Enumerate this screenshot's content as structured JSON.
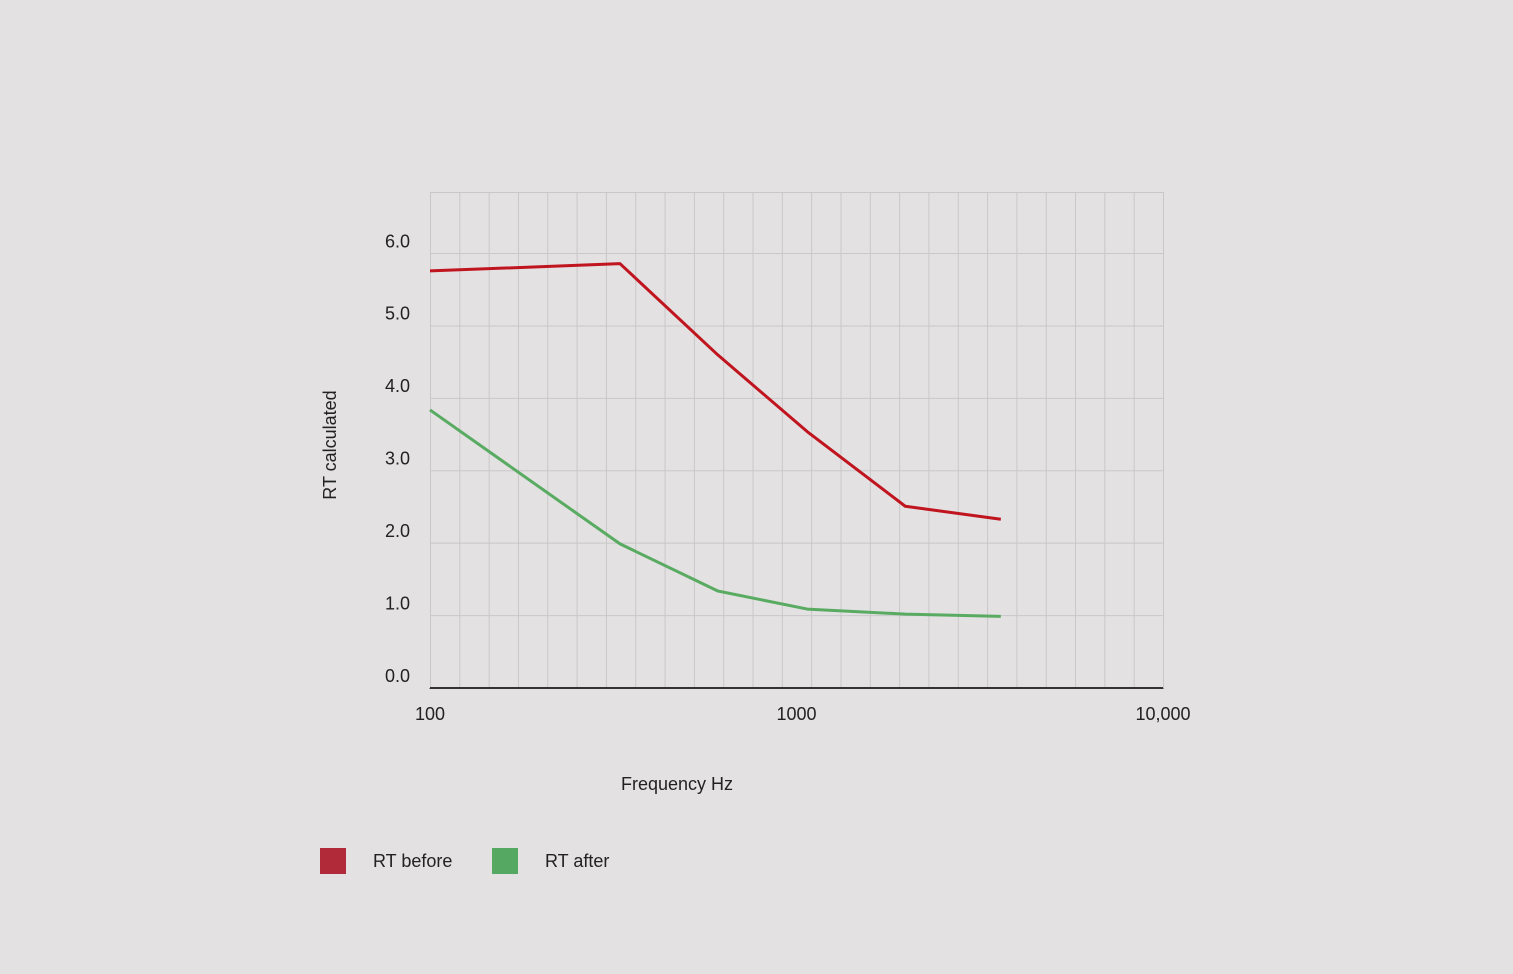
{
  "chart_data": {
    "type": "line",
    "x_label": "Frequency Hz",
    "y_label": "RT calculated",
    "x": [
      100,
      330,
      610,
      1070,
      1980,
      3610
    ],
    "series": [
      {
        "name": "RT before",
        "color": "#c0141e",
        "legend_color": "#b02a3a",
        "values": [
          5.76,
          5.86,
          4.6,
          3.54,
          2.51,
          2.33
        ]
      },
      {
        "name": "RT after",
        "color": "#5aab62",
        "legend_color": "#55a862",
        "values": [
          3.84,
          1.99,
          1.34,
          1.09,
          1.02,
          0.99
        ]
      }
    ],
    "xscale": "log",
    "xlim": [
      100,
      10000
    ],
    "xticks": [
      100,
      1000,
      {
        "value": 10000,
        "label": "10,000"
      }
    ],
    "ylim": [
      0,
      6.85
    ],
    "yticks": [
      {
        "value": 0,
        "label": "0.0"
      },
      {
        "value": 1,
        "label": "1.0"
      },
      {
        "value": 2,
        "label": "2.0"
      },
      {
        "value": 3,
        "label": "3.0"
      },
      {
        "value": 4,
        "label": "4.0"
      },
      {
        "value": 5,
        "label": "5.0"
      },
      {
        "value": 6,
        "label": "6.0"
      }
    ],
    "grid": true
  }
}
